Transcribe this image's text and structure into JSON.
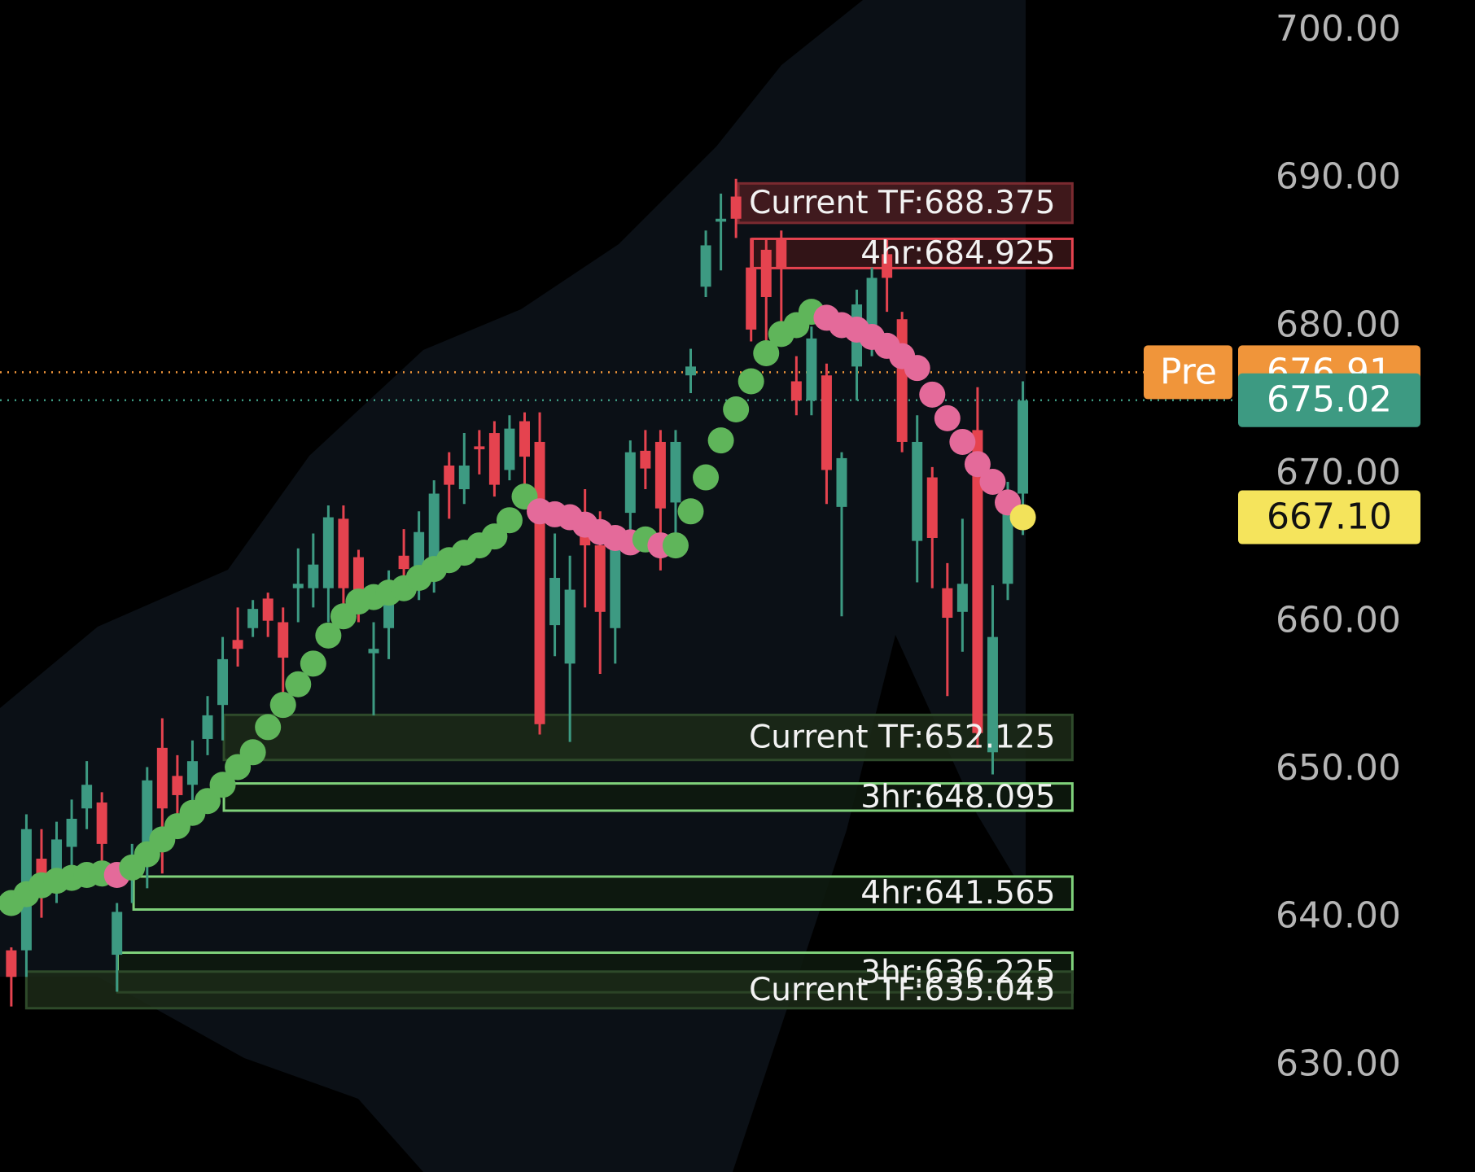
{
  "chart_data": {
    "type": "candlestick",
    "ylim": [
      622.8,
      702.1
    ],
    "yticks": [
      {
        "value": 630,
        "label": "630.00"
      },
      {
        "value": 640,
        "label": "640.00"
      },
      {
        "value": 650,
        "label": "650.00"
      },
      {
        "value": 660,
        "label": "660.00"
      },
      {
        "value": 670,
        "label": "670.00"
      },
      {
        "value": 680,
        "label": "680.00"
      },
      {
        "value": 690,
        "label": "690.00"
      },
      {
        "value": 700,
        "label": "700.00"
      }
    ],
    "up_color": "#3d9a82",
    "down_color": "#e5434f",
    "candles": [
      [
        637.8,
        638,
        634,
        636
      ],
      [
        637.8,
        647,
        636,
        646
      ],
      [
        644,
        646,
        640,
        642.6
      ],
      [
        642,
        646.5,
        641,
        645.3
      ],
      [
        644.8,
        648,
        643,
        646.7
      ],
      [
        647.4,
        650.6,
        646,
        649
      ],
      [
        647.8,
        648.5,
        643,
        645
      ],
      [
        637.5,
        641,
        635,
        640.4
      ],
      [
        642.6,
        645,
        641,
        643.8
      ],
      [
        644.2,
        650.2,
        642,
        649.3
      ],
      [
        651.5,
        653.5,
        643,
        647.4
      ],
      [
        649.6,
        651,
        646,
        648.3
      ],
      [
        649,
        652,
        647,
        650.6
      ],
      [
        652.1,
        655,
        651,
        653.7
      ],
      [
        654.4,
        659,
        652,
        657.5
      ],
      [
        658.8,
        661,
        657,
        658.2
      ],
      [
        659.6,
        661.5,
        659,
        660.9
      ],
      [
        661.6,
        662,
        659,
        660.1
      ],
      [
        660,
        661,
        655,
        657.6
      ],
      [
        662.3,
        665,
        660,
        662.6
      ],
      [
        662.3,
        666,
        661,
        663.9
      ],
      [
        662.3,
        667.9,
        660,
        667.1
      ],
      [
        667,
        667.9,
        660.7,
        662.3
      ],
      [
        664.4,
        664.9,
        660,
        661.4
      ],
      [
        657.9,
        660,
        653.7,
        658.2
      ],
      [
        659.6,
        663.5,
        657.5,
        662.3
      ],
      [
        664.5,
        666.3,
        662,
        663.6
      ],
      [
        662.6,
        667.5,
        661.5,
        666.1
      ],
      [
        663.3,
        669.6,
        662,
        668.7
      ],
      [
        670.6,
        671.5,
        667,
        669.3
      ],
      [
        669,
        672.8,
        668,
        670.6
      ],
      [
        671.9,
        673,
        670,
        671.7
      ],
      [
        672.8,
        673.6,
        668.5,
        669.3
      ],
      [
        670.3,
        674,
        669.6,
        673.1
      ],
      [
        673.6,
        674.2,
        668,
        671.2
      ],
      [
        672.2,
        674.2,
        652.4,
        653.1
      ],
      [
        659.8,
        666,
        657.7,
        663
      ],
      [
        657.2,
        664.5,
        651.9,
        662.2
      ],
      [
        667,
        669,
        661,
        665.2
      ],
      [
        665.2,
        667.5,
        656.5,
        660.7
      ],
      [
        659.6,
        666.5,
        657.2,
        665.2
      ],
      [
        667.4,
        672.3,
        665,
        671.5
      ],
      [
        671.6,
        673,
        669,
        670.4
      ],
      [
        672.2,
        673,
        663.5,
        667.7
      ],
      [
        668.1,
        673,
        666,
        672.2
      ],
      [
        676.7,
        678.5,
        675.5,
        677.3
      ],
      [
        682.7,
        686.5,
        682,
        685.5
      ],
      [
        687.1,
        689,
        683.8,
        687.3
      ],
      [
        688.8,
        690,
        686,
        687.3
      ],
      [
        684,
        686,
        679,
        679.8
      ],
      [
        685.2,
        686,
        678,
        682
      ],
      [
        685.9,
        686.5,
        679,
        683.9
      ],
      [
        676.3,
        678,
        674,
        675
      ],
      [
        675,
        680,
        674,
        679.2
      ],
      [
        676.7,
        677.5,
        668,
        670.3
      ],
      [
        667.8,
        671.5,
        660.4,
        671.1
      ],
      [
        677.3,
        682.5,
        675,
        681.5
      ],
      [
        678.9,
        684,
        678,
        683.3
      ],
      [
        684.9,
        686,
        681,
        683.3
      ],
      [
        680.5,
        681,
        671.5,
        672.2
      ],
      [
        665.5,
        674,
        662.7,
        672.2
      ],
      [
        669.8,
        670.5,
        662.3,
        665.7
      ],
      [
        662.3,
        664,
        655,
        660.3
      ],
      [
        660.7,
        667,
        658,
        662.6
      ],
      [
        673,
        675.9,
        651.5,
        652.5
      ],
      [
        651.2,
        662.5,
        649.7,
        659
      ],
      [
        662.6,
        669.5,
        661.5,
        668
      ],
      [
        668.7,
        676.3,
        665.9,
        675
      ]
    ],
    "trail": {
      "values": [
        641,
        641.6,
        642.2,
        642.5,
        642.7,
        642.9,
        643,
        642.9,
        643.4,
        644.3,
        645.3,
        646.2,
        647.1,
        647.9,
        649,
        650.2,
        651.2,
        652.9,
        654.4,
        655.8,
        657.2,
        659.1,
        660.4,
        661.4,
        661.7,
        662,
        662.3,
        663,
        663.6,
        664.2,
        664.7,
        665.2,
        665.8,
        666.9,
        668.5,
        667.5,
        667.3,
        667.1,
        666.6,
        666.1,
        665.7,
        665.4,
        665.6,
        665.2,
        665.2,
        667.5,
        669.8,
        672.3,
        674.4,
        676.3,
        678.2,
        679.5,
        680.1,
        681,
        680.6,
        680.1,
        679.8,
        679.3,
        678.7,
        678,
        677.2,
        675.4,
        673.8,
        672.2,
        670.7,
        669.5,
        668.1,
        667.1
      ],
      "colors": [
        "#5fb55a",
        "#5fb55a",
        "#5fb55a",
        "#5fb55a",
        "#5fb55a",
        "#5fb55a",
        "#5fb55a",
        "#e46a9a",
        "#5fb55a",
        "#5fb55a",
        "#5fb55a",
        "#5fb55a",
        "#5fb55a",
        "#5fb55a",
        "#5fb55a",
        "#5fb55a",
        "#5fb55a",
        "#5fb55a",
        "#5fb55a",
        "#5fb55a",
        "#5fb55a",
        "#5fb55a",
        "#5fb55a",
        "#5fb55a",
        "#5fb55a",
        "#5fb55a",
        "#5fb55a",
        "#5fb55a",
        "#5fb55a",
        "#5fb55a",
        "#5fb55a",
        "#5fb55a",
        "#5fb55a",
        "#5fb55a",
        "#5fb55a",
        "#e46a9a",
        "#e46a9a",
        "#e46a9a",
        "#e46a9a",
        "#e46a9a",
        "#e46a9a",
        "#e46a9a",
        "#5fb55a",
        "#e46a9a",
        "#5fb55a",
        "#5fb55a",
        "#5fb55a",
        "#5fb55a",
        "#5fb55a",
        "#5fb55a",
        "#5fb55a",
        "#5fb55a",
        "#5fb55a",
        "#5fb55a",
        "#e46a9a",
        "#e46a9a",
        "#e46a9a",
        "#e46a9a",
        "#e46a9a",
        "#e46a9a",
        "#e46a9a",
        "#e46a9a",
        "#e46a9a",
        "#e46a9a",
        "#e46a9a",
        "#e46a9a",
        "#e46a9a",
        "#f2e25a"
      ]
    },
    "zones": [
      {
        "label": "Current TF:688.375",
        "top": 689.69,
        "bottom": 687.02,
        "fill": "#4a1c20",
        "stroke": "#7a2a30"
      },
      {
        "label": "4hr:684.925",
        "top": 685.94,
        "bottom": 683.96,
        "fill": "#3a1518",
        "stroke": "#e5434f"
      },
      {
        "label": "Current TF:652.125",
        "top": 653.73,
        "bottom": 650.68,
        "fill": "#1c2a18",
        "stroke": "#2e4a2a"
      },
      {
        "label": "3hr:648.095",
        "top": 649.09,
        "bottom": 647.25,
        "fill": "#0e1a0e",
        "stroke": "#7fd17a"
      },
      {
        "label": "4hr:641.565",
        "top": 642.79,
        "bottom": 640.56,
        "fill": "#0e1a0e",
        "stroke": "#7fd17a"
      },
      {
        "label": "3hr:636.225",
        "top": 637.64,
        "bottom": 634.96,
        "fill": "#0e1a0e",
        "stroke": "#7fd17a"
      },
      {
        "label": "Current TF:635.045",
        "top": 636.36,
        "bottom": 633.88,
        "fill": "#1c2a18",
        "stroke": "#2e4a2a"
      }
    ],
    "price_tags": [
      {
        "name": "Pre",
        "value": 676.91,
        "label": "676.91",
        "color": "#f0953a",
        "line": true
      },
      {
        "value": 675.02,
        "label": "675.02",
        "color": "#3d9a82",
        "line": true
      },
      {
        "value": 667.1,
        "label": "667.10",
        "color": "#f5e45c",
        "line": false
      }
    ]
  }
}
